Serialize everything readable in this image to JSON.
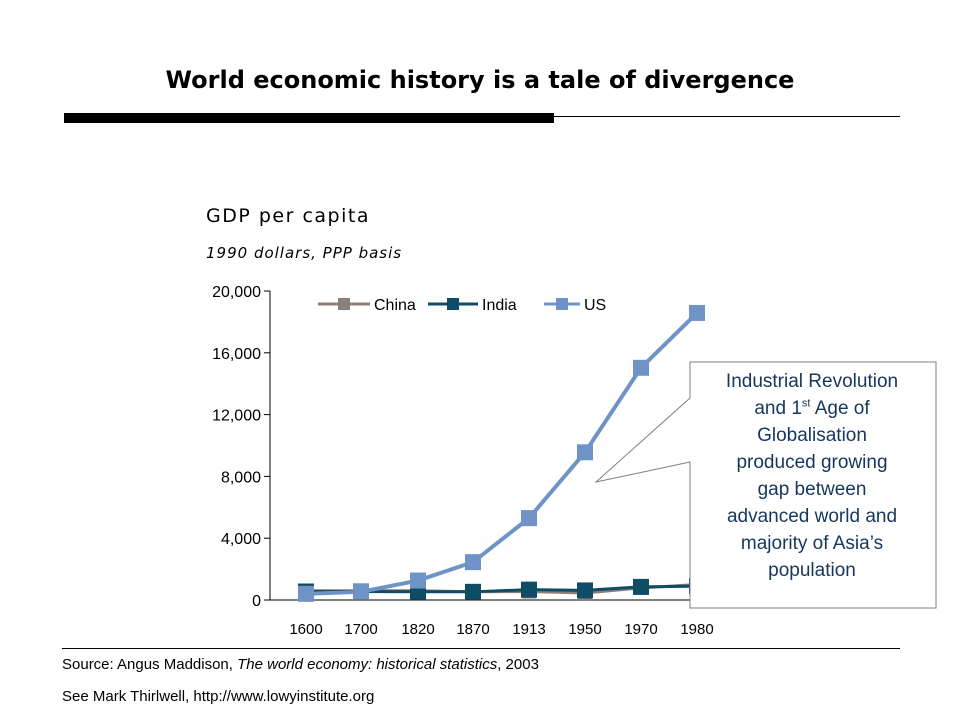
{
  "slide": {
    "title": "World economic history is a tale of divergence"
  },
  "chart_data": {
    "type": "line",
    "title": "GDP per capita",
    "subtitle": "1990 dollars, PPP basis",
    "categories": [
      "1600",
      "1700",
      "1820",
      "1870",
      "1913",
      "1950",
      "1970",
      "1980"
    ],
    "series": [
      {
        "name": "China",
        "color": "#8c7f78",
        "values": [
          600,
          600,
          600,
          530,
          550,
          450,
          780,
          1000
        ]
      },
      {
        "name": "India",
        "color": "#0f4c66",
        "values": [
          550,
          550,
          530,
          530,
          670,
          620,
          850,
          900
        ]
      },
      {
        "name": "US",
        "color": "#6f93c6",
        "values": [
          400,
          530,
          1260,
          2450,
          5300,
          9560,
          15030,
          18580
        ]
      }
    ],
    "yticks": [
      "0",
      "4,000",
      "8,000",
      "12,000",
      "16,000",
      "20,000"
    ],
    "ylim": [
      0,
      20000
    ],
    "legend_position": "top",
    "grid": false
  },
  "callout": {
    "line1": "Industrial Revolution",
    "line2_pre": "and 1",
    "line2_sup": "st",
    "line2_post": " Age of",
    "line3": "Globalisation",
    "line4": "produced growing",
    "line5": "gap between",
    "line6": "advanced world and",
    "line7": "majority of Asia’s",
    "line8": "population"
  },
  "footer": {
    "source_prefix": "Source: Angus Maddison, ",
    "source_title": "The world economy: historical statistics",
    "source_suffix": ", 2003",
    "see_also": "See Mark Thirlwell,  http://www.lowyinstitute.org"
  }
}
